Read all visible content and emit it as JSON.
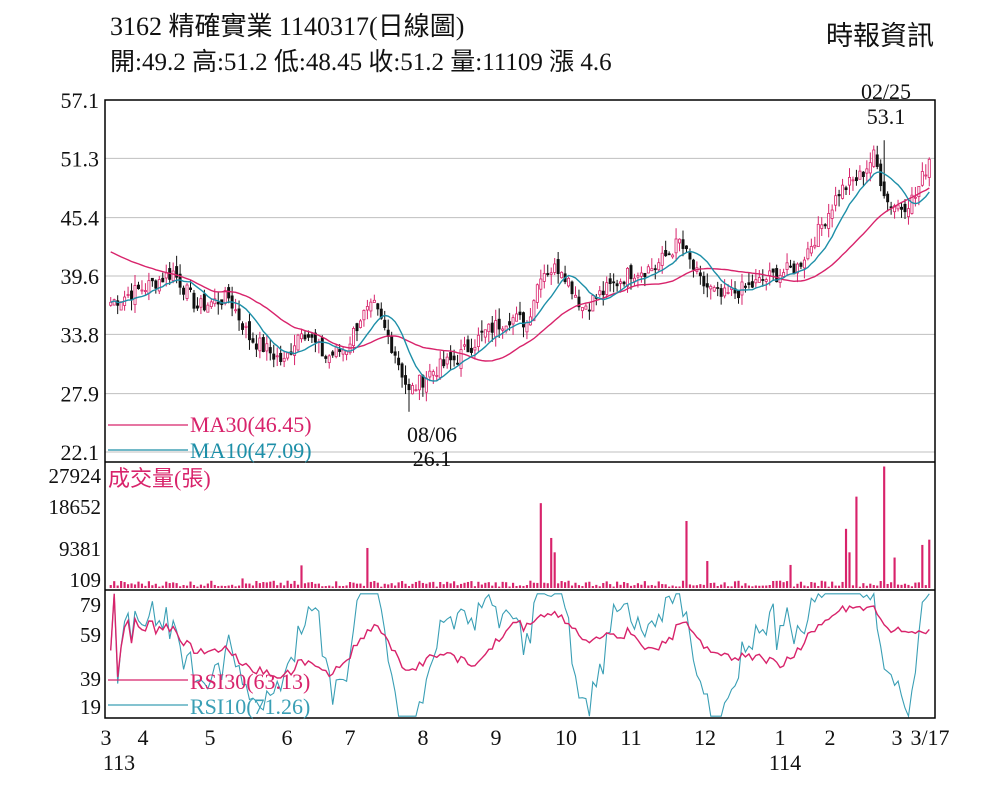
{
  "header": {
    "line1": "3162  精確實業 1140317(日線圖)",
    "line2": "開:49.2 高:51.2 低:48.45 收:51.2 量:11109 漲 4.6",
    "brand": "時報資訊"
  },
  "colors": {
    "up": "#d8236b",
    "down": "#111111",
    "ma30": "#d8236b",
    "ma10": "#1d8fa8",
    "volume": "#d8236b",
    "rsi30": "#d8236b",
    "rsi10": "#3a9fb5",
    "grid": "#bfbfbf"
  },
  "chart_data": [
    {
      "type": "candlestick",
      "panel": "price",
      "ylim": [
        22.1,
        57.1
      ],
      "y_ticks": [
        "57.1",
        "51.3",
        "45.4",
        "39.6",
        "33.8",
        "27.9",
        "22.1"
      ],
      "grid": true,
      "x_tick_labels": [
        "3",
        "4",
        "5",
        "6",
        "7",
        "8",
        "9",
        "10",
        "11",
        "12",
        "1",
        "2",
        "3",
        "3/17"
      ],
      "x_year_labels": [
        "113",
        "114"
      ],
      "anchor_points": [
        {
          "d": 0,
          "p": 37
        },
        {
          "d": 10,
          "p": 38.5
        },
        {
          "d": 18,
          "p": 40
        },
        {
          "d": 25,
          "p": 36.5
        },
        {
          "d": 34,
          "p": 37.5
        },
        {
          "d": 40,
          "p": 33.5
        },
        {
          "d": 50,
          "p": 31
        },
        {
          "d": 55,
          "p": 34.5
        },
        {
          "d": 62,
          "p": 31.5
        },
        {
          "d": 68,
          "p": 32.5
        },
        {
          "d": 72,
          "p": 35.5
        },
        {
          "d": 76,
          "p": 36.5
        },
        {
          "d": 82,
          "p": 32
        },
        {
          "d": 86,
          "p": 28
        },
        {
          "d": 92,
          "p": 30
        },
        {
          "d": 100,
          "p": 31.5
        },
        {
          "d": 108,
          "p": 34
        },
        {
          "d": 115,
          "p": 35.5
        },
        {
          "d": 120,
          "p": 35
        },
        {
          "d": 124,
          "p": 40
        },
        {
          "d": 130,
          "p": 40.5
        },
        {
          "d": 136,
          "p": 36.5
        },
        {
          "d": 142,
          "p": 38
        },
        {
          "d": 150,
          "p": 40
        },
        {
          "d": 157,
          "p": 40.5
        },
        {
          "d": 164,
          "p": 43
        },
        {
          "d": 170,
          "p": 39
        },
        {
          "d": 176,
          "p": 37.5
        },
        {
          "d": 184,
          "p": 38.5
        },
        {
          "d": 190,
          "p": 39.5
        },
        {
          "d": 198,
          "p": 40.5
        },
        {
          "d": 204,
          "p": 44
        },
        {
          "d": 210,
          "p": 48
        },
        {
          "d": 216,
          "p": 49.5
        },
        {
          "d": 220,
          "p": 51.5
        },
        {
          "d": 224,
          "p": 47
        },
        {
          "d": 228,
          "p": 46.5
        },
        {
          "d": 232,
          "p": 47.5
        },
        {
          "d": 236,
          "p": 51.2
        }
      ],
      "high_mark": {
        "date": "02/25",
        "value": "53.1"
      },
      "low_mark": {
        "date": "08/06",
        "value": "26.1"
      },
      "series": [
        {
          "name": "MA30(46.45)",
          "last": 46.45
        },
        {
          "name": "MA10(47.09)",
          "last": 47.09
        }
      ]
    },
    {
      "type": "bar",
      "panel": "volume",
      "title": "成交量(張)",
      "ylim": [
        0,
        28500
      ],
      "y_ticks": [
        "27924",
        "18652",
        "9381",
        "109"
      ],
      "spikes": [
        {
          "d": 38,
          "v": 2200
        },
        {
          "d": 55,
          "v": 5200
        },
        {
          "d": 74,
          "v": 9200
        },
        {
          "d": 124,
          "v": 19500
        },
        {
          "d": 127,
          "v": 11500
        },
        {
          "d": 128,
          "v": 8200
        },
        {
          "d": 166,
          "v": 15400
        },
        {
          "d": 172,
          "v": 6200
        },
        {
          "d": 196,
          "v": 5300
        },
        {
          "d": 212,
          "v": 13600
        },
        {
          "d": 213,
          "v": 8200
        },
        {
          "d": 215,
          "v": 21000
        },
        {
          "d": 223,
          "v": 27924
        },
        {
          "d": 226,
          "v": 7000
        },
        {
          "d": 234,
          "v": 9900
        },
        {
          "d": 236,
          "v": 11109
        }
      ]
    },
    {
      "type": "line",
      "panel": "rsi",
      "ylim": [
        13,
        82
      ],
      "y_ticks": [
        "79",
        "59",
        "39",
        "19"
      ],
      "series": [
        {
          "name": "RSI30(63.13)",
          "last": 63.13
        },
        {
          "name": "RSI10(71.26)",
          "last": 71.26
        }
      ]
    }
  ]
}
